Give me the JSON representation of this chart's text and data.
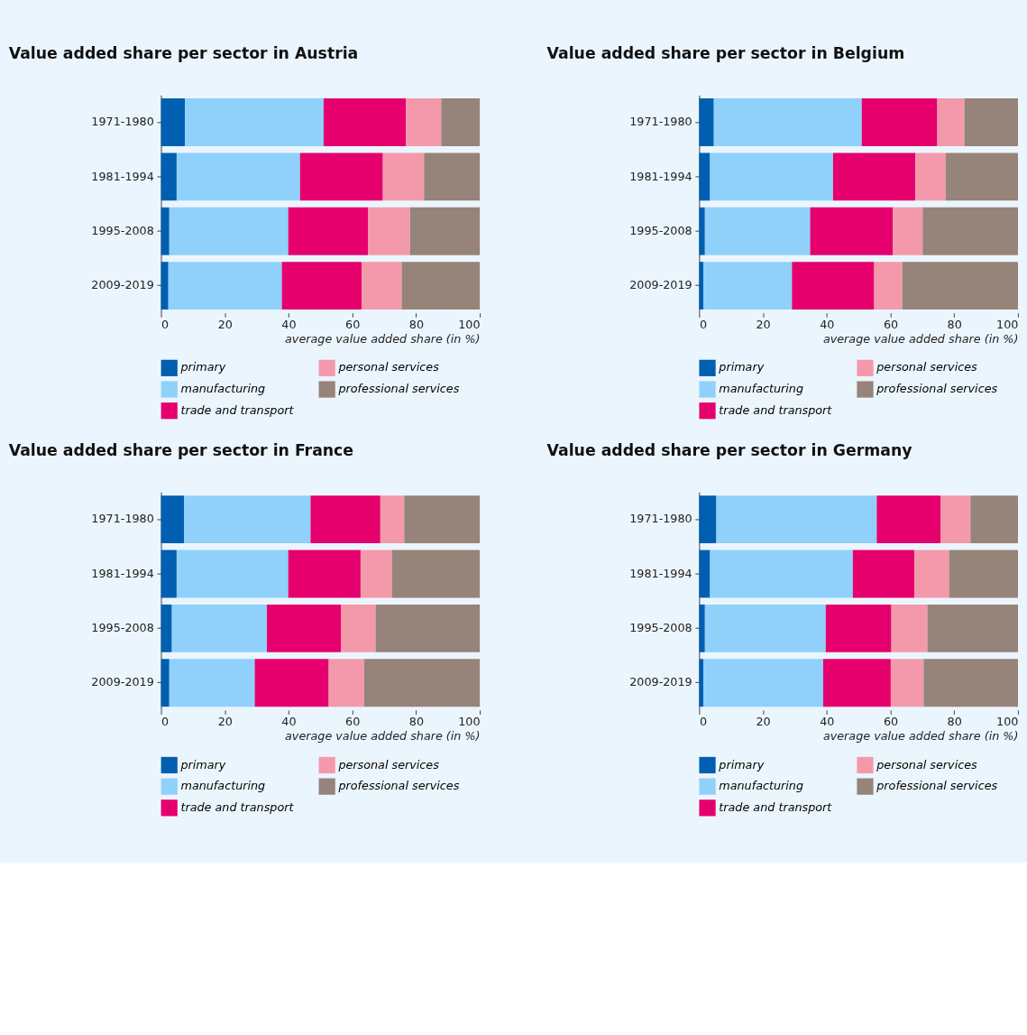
{
  "chart_data": [
    {
      "type": "bar",
      "orientation": "horizontal",
      "stacked": true,
      "title": "Value added share per sector in Austria",
      "xlabel": "average value added share (in %)",
      "categories": [
        "1971-1980",
        "1981-1994",
        "1995-2008",
        "2009-2019"
      ],
      "xlim": [
        0,
        100
      ],
      "xticks": [
        0,
        20,
        40,
        60,
        80,
        100
      ],
      "grid": false,
      "legend": "bottom",
      "series": [
        {
          "name": "primary",
          "color": "#005fb0",
          "values": [
            7.5,
            4.9,
            2.6,
            2.3
          ]
        },
        {
          "name": "manufacturing",
          "color": "#8fd1fb",
          "values": [
            43.5,
            38.7,
            37.3,
            35.6
          ]
        },
        {
          "name": "trade and transport",
          "color": "#e5006d",
          "values": [
            25.8,
            26.0,
            25.0,
            25.0
          ]
        },
        {
          "name": "personal services",
          "color": "#f499ab",
          "values": [
            11.1,
            12.9,
            13.2,
            12.6
          ]
        },
        {
          "name": "professional services",
          "color": "#968379",
          "values": [
            12.1,
            17.5,
            21.9,
            24.5
          ]
        }
      ]
    },
    {
      "type": "bar",
      "orientation": "horizontal",
      "stacked": true,
      "title": "Value added share per sector in Belgium",
      "xlabel": "average value added share (in %)",
      "categories": [
        "1971-1980",
        "1981-1994",
        "1995-2008",
        "2009-2019"
      ],
      "xlim": [
        0,
        100
      ],
      "xticks": [
        0,
        20,
        40,
        60,
        80,
        100
      ],
      "grid": false,
      "legend": "bottom",
      "series": [
        {
          "name": "primary",
          "color": "#005fb0",
          "values": [
            4.6,
            3.4,
            1.8,
            1.3
          ]
        },
        {
          "name": "manufacturing",
          "color": "#8fd1fb",
          "values": [
            46.4,
            38.6,
            33.0,
            27.8
          ]
        },
        {
          "name": "trade and transport",
          "color": "#e5006d",
          "values": [
            23.7,
            25.8,
            26.0,
            25.8
          ]
        },
        {
          "name": "personal services",
          "color": "#f499ab",
          "values": [
            8.5,
            9.5,
            9.3,
            8.8
          ]
        },
        {
          "name": "professional services",
          "color": "#968379",
          "values": [
            16.8,
            22.7,
            29.9,
            36.3
          ]
        }
      ]
    },
    {
      "type": "bar",
      "orientation": "horizontal",
      "stacked": true,
      "title": "Value added share per sector in France",
      "xlabel": "average value added share (in %)",
      "categories": [
        "1971-1980",
        "1981-1994",
        "1995-2008",
        "2009-2019"
      ],
      "xlim": [
        0,
        100
      ],
      "xticks": [
        0,
        20,
        40,
        60,
        80,
        100
      ],
      "grid": false,
      "legend": "bottom",
      "series": [
        {
          "name": "primary",
          "color": "#005fb0",
          "values": [
            7.2,
            4.9,
            3.4,
            2.6
          ]
        },
        {
          "name": "manufacturing",
          "color": "#8fd1fb",
          "values": [
            39.7,
            35.0,
            29.8,
            26.8
          ]
        },
        {
          "name": "trade and transport",
          "color": "#e5006d",
          "values": [
            21.9,
            22.7,
            23.2,
            23.2
          ]
        },
        {
          "name": "personal services",
          "color": "#f499ab",
          "values": [
            7.5,
            9.8,
            10.9,
            11.1
          ]
        },
        {
          "name": "professional services",
          "color": "#968379",
          "values": [
            23.7,
            27.6,
            32.7,
            36.3
          ]
        }
      ]
    },
    {
      "type": "bar",
      "orientation": "horizontal",
      "stacked": true,
      "title": "Value added share per sector in Germany",
      "xlabel": "average value added share (in %)",
      "categories": [
        "1971-1980",
        "1981-1994",
        "1995-2008",
        "2009-2019"
      ],
      "xlim": [
        0,
        100
      ],
      "xticks": [
        0,
        20,
        40,
        60,
        80,
        100
      ],
      "grid": false,
      "legend": "bottom",
      "series": [
        {
          "name": "primary",
          "color": "#005fb0",
          "values": [
            5.4,
            3.4,
            1.8,
            1.3
          ]
        },
        {
          "name": "manufacturing",
          "color": "#8fd1fb",
          "values": [
            50.3,
            44.8,
            37.9,
            37.6
          ]
        },
        {
          "name": "trade and transport",
          "color": "#e5006d",
          "values": [
            20.1,
            19.3,
            20.6,
            21.2
          ]
        },
        {
          "name": "personal services",
          "color": "#f499ab",
          "values": [
            9.3,
            10.9,
            11.3,
            10.3
          ]
        },
        {
          "name": "professional services",
          "color": "#968379",
          "values": [
            14.9,
            21.6,
            28.4,
            29.6
          ]
        }
      ]
    }
  ]
}
